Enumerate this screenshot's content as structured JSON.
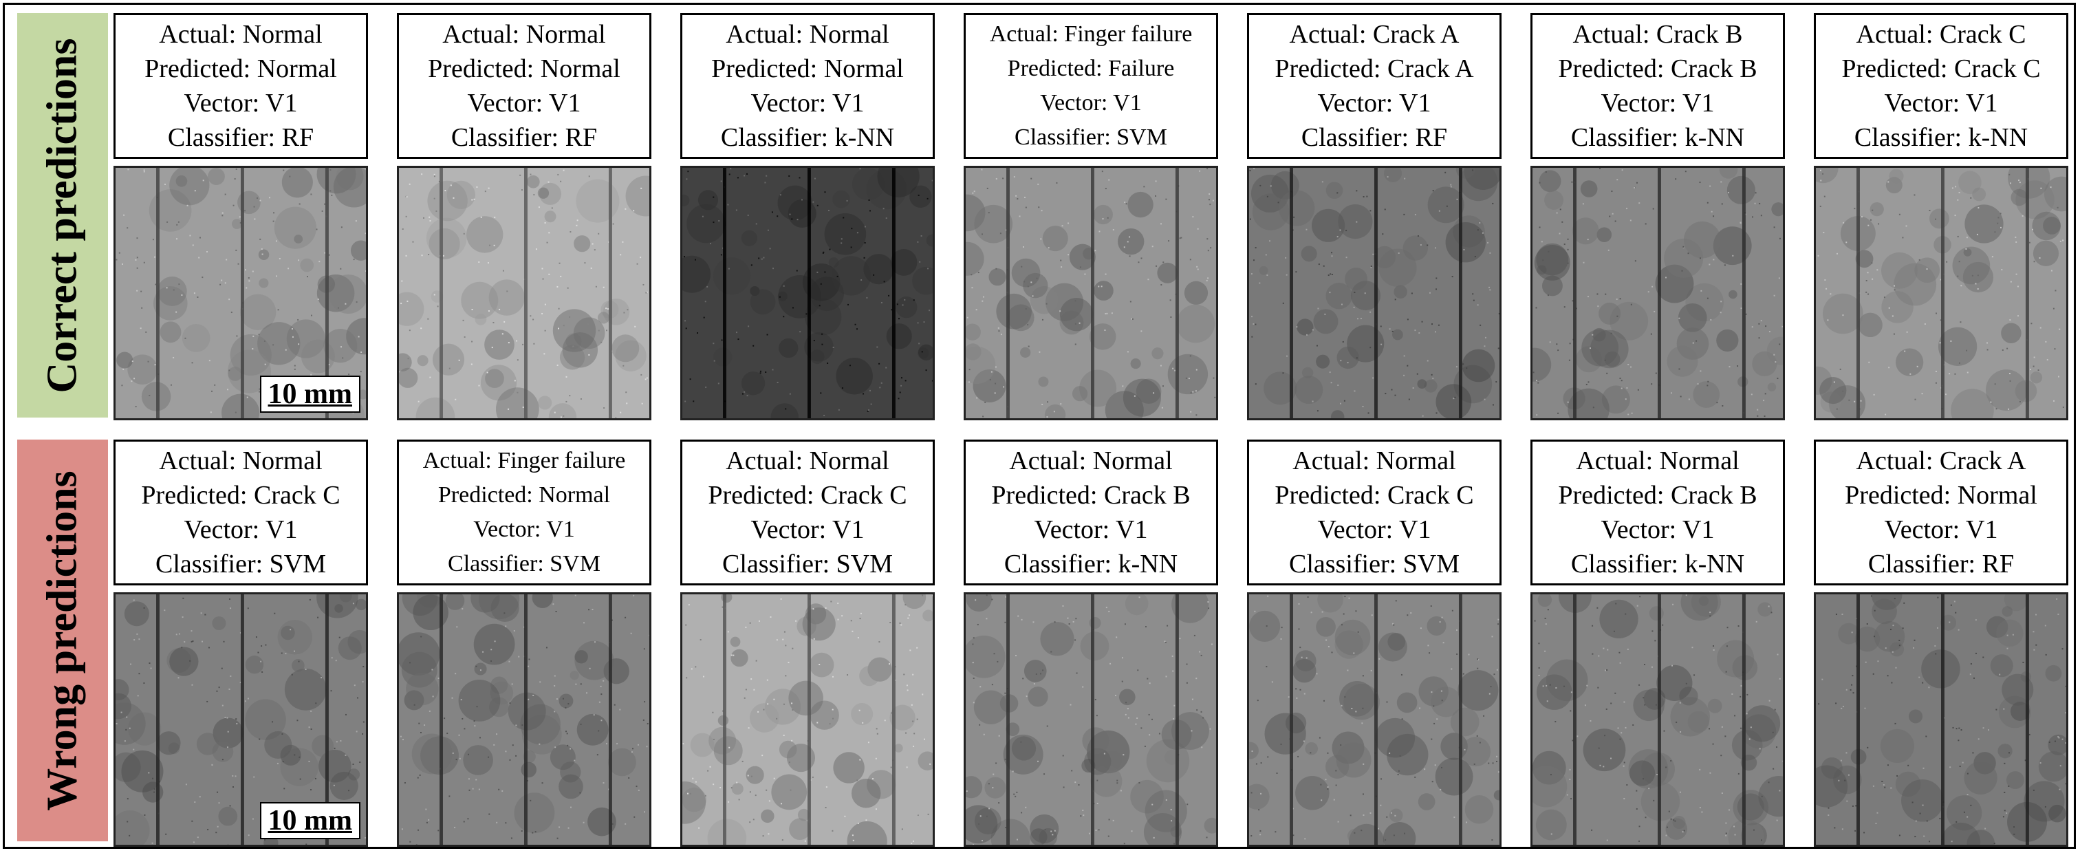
{
  "colors": {
    "correct_band": "#c4d8a3",
    "wrong_band": "#dc8d88"
  },
  "row_labels": {
    "correct": "Correct predictions",
    "wrong": "Wrong predictions"
  },
  "scale_bar": "10 mm",
  "rows": [
    {
      "key": "correct",
      "panels": [
        {
          "lines": [
            "Actual: Normal",
            "Predicted: Normal",
            "Vector: V1",
            "Classifier: RF"
          ],
          "shade": 0.72,
          "scale": true
        },
        {
          "lines": [
            "Actual: Normal",
            "Predicted: Normal",
            "Vector: V1",
            "Classifier: RF"
          ],
          "shade": 0.82,
          "scale": false
        },
        {
          "lines": [
            "Actual: Normal",
            "Predicted: Normal",
            "Vector: V1",
            "Classifier: k-NN"
          ],
          "shade": 0.3,
          "scale": false
        },
        {
          "lines": [
            "Actual: Finger failure",
            "Predicted: Failure",
            "Vector: V1",
            "Classifier: SVM"
          ],
          "shade": 0.68,
          "scale": false
        },
        {
          "lines": [
            "Actual: Crack A",
            "Predicted: Crack A",
            "Vector: V1",
            "Classifier: RF"
          ],
          "shade": 0.55,
          "scale": false
        },
        {
          "lines": [
            "Actual: Crack B",
            "Predicted: Crack B",
            "Vector: V1",
            "Classifier: k-NN"
          ],
          "shade": 0.62,
          "scale": false
        },
        {
          "lines": [
            "Actual: Crack C",
            "Predicted: Crack C",
            "Vector: V1",
            "Classifier: k-NN"
          ],
          "shade": 0.7,
          "scale": false
        }
      ]
    },
    {
      "key": "wrong",
      "panels": [
        {
          "lines": [
            "Actual: Normal",
            "Predicted: Crack C",
            "Vector: V1",
            "Classifier: SVM"
          ],
          "shade": 0.58,
          "scale": true
        },
        {
          "lines": [
            "Actual: Finger failure",
            "Predicted: Normal",
            "Vector: V1",
            "Classifier: SVM"
          ],
          "shade": 0.6,
          "scale": false
        },
        {
          "lines": [
            "Actual: Normal",
            "Predicted: Crack C",
            "Vector: V1",
            "Classifier: SVM"
          ],
          "shade": 0.8,
          "scale": false
        },
        {
          "lines": [
            "Actual: Normal",
            "Predicted: Crack B",
            "Vector: V1",
            "Classifier: k-NN"
          ],
          "shade": 0.64,
          "scale": false
        },
        {
          "lines": [
            "Actual: Normal",
            "Predicted: Crack C",
            "Vector: V1",
            "Classifier: SVM"
          ],
          "shade": 0.62,
          "scale": false
        },
        {
          "lines": [
            "Actual: Normal",
            "Predicted: Crack B",
            "Vector: V1",
            "Classifier: k-NN"
          ],
          "shade": 0.6,
          "scale": false
        },
        {
          "lines": [
            "Actual: Crack A",
            "Predicted: Normal",
            "Vector: V1",
            "Classifier: RF"
          ],
          "shade": 0.56,
          "scale": false
        }
      ]
    }
  ]
}
